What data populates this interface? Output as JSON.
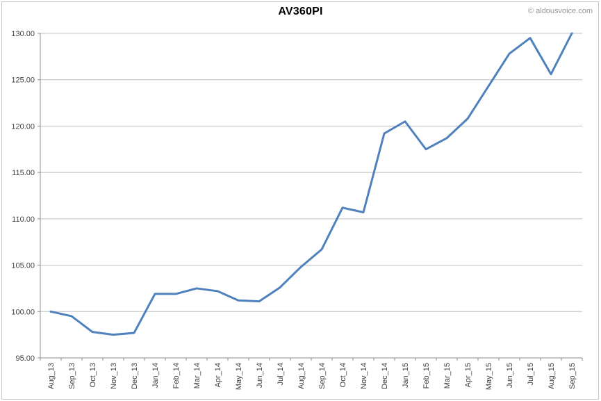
{
  "header": {
    "title": "AV360PI",
    "copyright": "© aldousvoice.com"
  },
  "chart_data": {
    "type": "line",
    "title": "AV360PI",
    "categories": [
      "Aug_13",
      "Sep_13",
      "Oct_13",
      "Nov_13",
      "Dec_13",
      "Jan_14",
      "Feb_14",
      "Mar_14",
      "Apr_14",
      "May_14",
      "Jun_14",
      "Jul_14",
      "Aug_14",
      "Sep_14",
      "Oct_14",
      "Nov_14",
      "Dec_14",
      "Jan_15",
      "Feb_15",
      "Mar_15",
      "Apr_15",
      "May_15",
      "Jun_15",
      "Jul_15",
      "Aug_15",
      "Sep_15"
    ],
    "values": [
      100.0,
      99.5,
      97.8,
      97.5,
      97.7,
      101.9,
      101.9,
      102.5,
      102.2,
      101.2,
      101.1,
      102.6,
      104.8,
      106.7,
      111.2,
      110.7,
      119.2,
      120.5,
      117.5,
      118.7,
      120.8,
      124.3,
      127.8,
      129.5,
      125.6,
      130.0
    ],
    "xlabel": "",
    "ylabel": "",
    "ylim": [
      95,
      130
    ],
    "ytick_step": 5,
    "ytick_decimals": 2,
    "grid": true,
    "legend": "none",
    "colors": {
      "series_line": "#4f81bd",
      "gridline": "#bfbfbf",
      "axis": "#8c8c8c",
      "tick_label": "#3f3f3f",
      "title": "#000000",
      "copyright": "#979797"
    }
  }
}
